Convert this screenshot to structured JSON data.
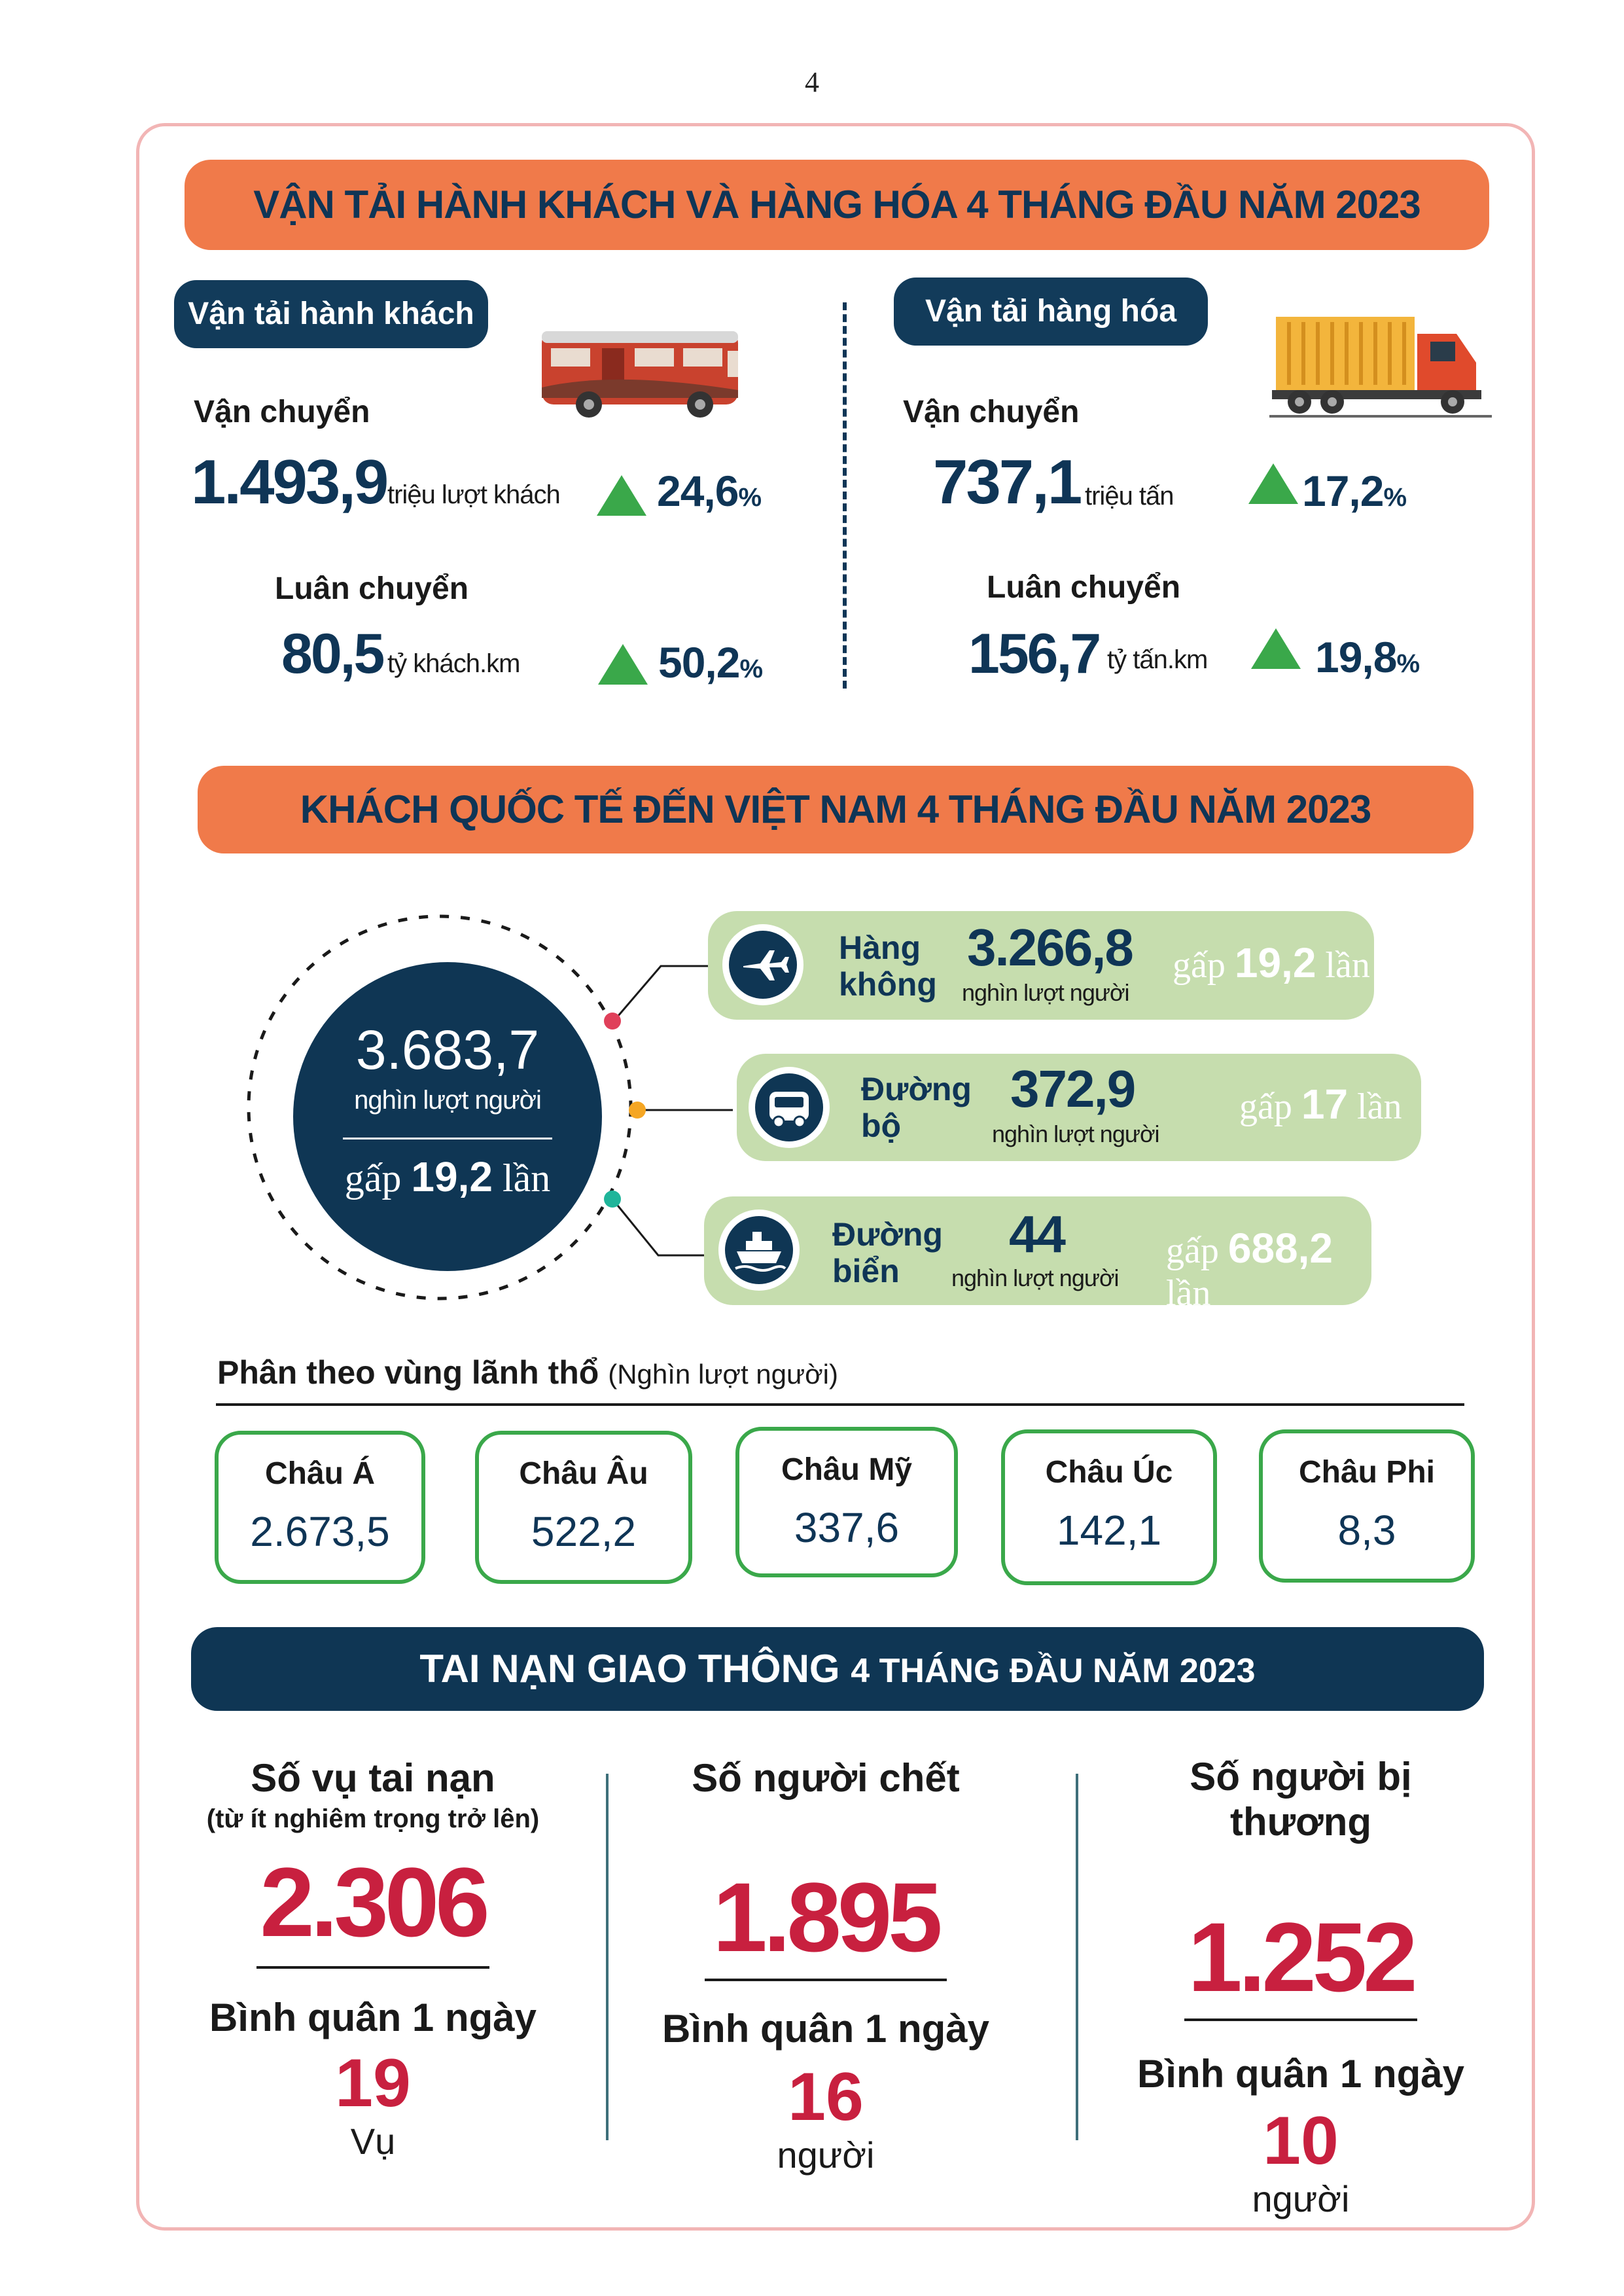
{
  "page_number": "4",
  "transport": {
    "title": "VẬN TẢI HÀNH KHÁCH VÀ HÀNG HÓA 4 THÁNG ĐẦU NĂM 2023",
    "passenger": {
      "label": "Vận tải hành khách",
      "transport_label": "Vận chuyển",
      "transport_value": "1.493,9",
      "transport_unit": "triệu lượt khách",
      "transport_change": "24,6",
      "rotation_label": "Luân chuyển",
      "rotation_value": "80,5",
      "rotation_unit": "tỷ khách.km",
      "rotation_change": "50,2",
      "percent": "%"
    },
    "cargo": {
      "label": "Vận tải hàng hóa",
      "transport_label": "Vận chuyển",
      "transport_value": "737,1",
      "transport_unit": "triệu tấn",
      "transport_change": "17,2",
      "rotation_label": "Luân chuyển",
      "rotation_value": "156,7",
      "rotation_unit": "tỷ tấn.km",
      "rotation_change": "19,8",
      "percent": "%"
    }
  },
  "visitors": {
    "title": "KHÁCH QUỐC TẾ ĐẾN VIỆT NAM 4 THÁNG ĐẦU NĂM 2023",
    "total_value": "3.683,7",
    "total_unit": "nghìn lượt người",
    "total_gap_prefix": "gấp",
    "total_gap_value": "19,2",
    "total_gap_suffix": "lần",
    "modes": [
      {
        "name_line1": "Hàng",
        "name_line2": "không",
        "value": "3.266,8",
        "unit": "nghìn lượt người",
        "gap_prefix": "gấp",
        "gap_value": "19,2",
        "gap_suffix": "lần",
        "icon": "airplane-icon",
        "dot_color": "#e0405a"
      },
      {
        "name_line1": "Đường",
        "name_line2": "bộ",
        "value": "372,9",
        "unit": "nghìn lượt người",
        "gap_prefix": "gấp",
        "gap_value": "17",
        "gap_suffix": "lần",
        "icon": "bus-icon",
        "dot_color": "#f5a623"
      },
      {
        "name_line1": "Đường",
        "name_line2": "biển",
        "value": "44",
        "unit": "nghìn lượt người",
        "gap_prefix": "gấp",
        "gap_value": "688,2",
        "gap_suffix": "lần",
        "icon": "ship-icon",
        "dot_color": "#1fb59a"
      }
    ],
    "regions_title": "Phân theo vùng lãnh thổ",
    "regions_unit": "(Nghìn lượt người)",
    "regions": [
      {
        "name": "Châu Á",
        "value": "2.673,5"
      },
      {
        "name": "Châu Âu",
        "value": "522,2"
      },
      {
        "name": "Châu Mỹ",
        "value": "337,6"
      },
      {
        "name": "Châu Úc",
        "value": "142,1"
      },
      {
        "name": "Châu Phi",
        "value": "8,3"
      }
    ]
  },
  "accidents": {
    "title_bold": "TAI NẠN GIAO THÔNG",
    "title_rest": "4 THÁNG ĐẦU NĂM 2023",
    "avg_label": "Bình quân 1 ngày",
    "columns": [
      {
        "title": "Số vụ tai nạn",
        "subtitle": "(từ ít nghiêm trọng trở lên)",
        "value": "2.306",
        "avg": "19",
        "avg_unit": "Vụ"
      },
      {
        "title": "Số người chết",
        "subtitle": "",
        "value": "1.895",
        "avg": "16",
        "avg_unit": "người"
      },
      {
        "title": "Số người bị thương",
        "subtitle": "",
        "value": "1.252",
        "avg": "10",
        "avg_unit": "người"
      }
    ]
  },
  "colors": {
    "orange": "#f07a4a",
    "navy": "#0f3654",
    "green_box": "#c6ddae",
    "green": "#3aa84a",
    "red": "#c8203f",
    "frame": "#f2b5b5"
  }
}
